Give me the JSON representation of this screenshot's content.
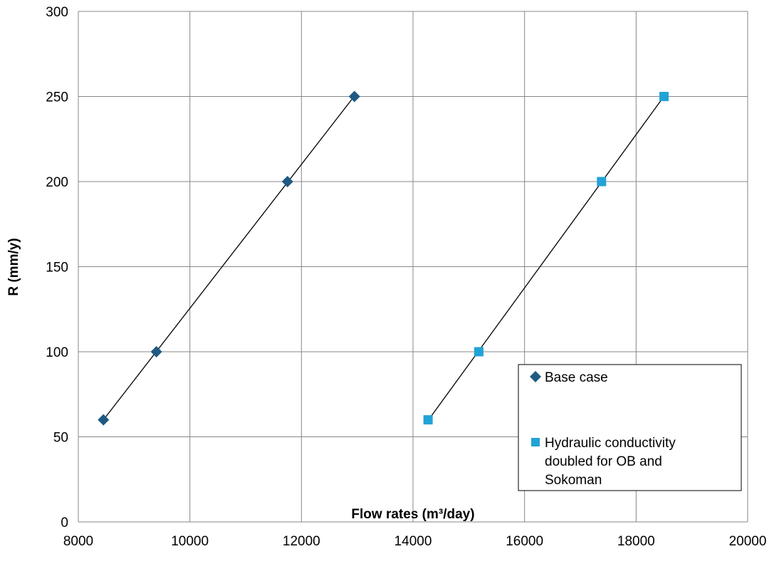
{
  "chart_data": {
    "type": "scatter",
    "title": "",
    "xlabel": "Flow rates (m³/day)",
    "ylabel": "R (mm/y)",
    "xlim": [
      8000,
      20000
    ],
    "ylim": [
      0,
      300
    ],
    "xticks": [
      8000,
      10000,
      12000,
      14000,
      16000,
      18000,
      20000
    ],
    "yticks": [
      0,
      50,
      100,
      150,
      200,
      250,
      300
    ],
    "grid": true,
    "legend_position": "bottom-right",
    "trendlines": true,
    "series": [
      {
        "name": "Base case",
        "marker": "diamond",
        "color": "#1F5A82",
        "points": [
          {
            "x": 8450,
            "y": 60
          },
          {
            "x": 9400,
            "y": 100
          },
          {
            "x": 11750,
            "y": 200
          },
          {
            "x": 12950,
            "y": 250
          }
        ]
      },
      {
        "name": "Hydraulic conductivity doubled for OB and Sokoman",
        "legend_lines": [
          "Hydraulic conductivity",
          "doubled for OB and",
          "Sokoman"
        ],
        "marker": "square",
        "color": "#22A3D6",
        "points": [
          {
            "x": 14270,
            "y": 60
          },
          {
            "x": 15180,
            "y": 100
          },
          {
            "x": 17380,
            "y": 200
          },
          {
            "x": 18500,
            "y": 250
          }
        ]
      }
    ]
  }
}
